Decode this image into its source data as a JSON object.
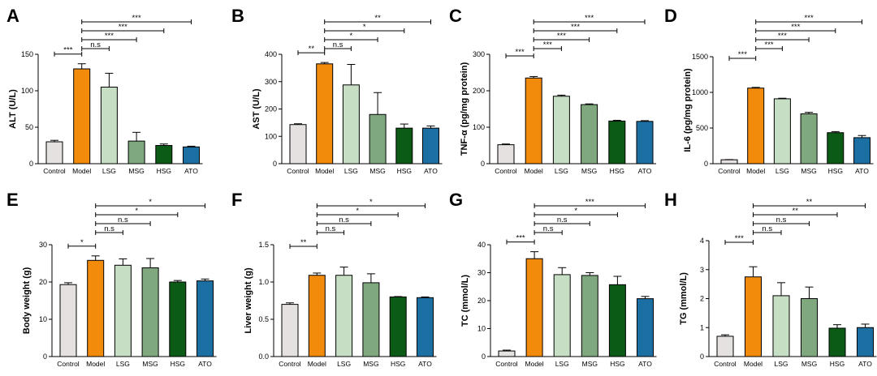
{
  "figure": {
    "colors": {
      "Control": "#e6e1e1",
      "Model": "#f28a0c",
      "LSG": "#c6dfc4",
      "MSG": "#7fa87f",
      "HSG": "#0b5a16",
      "ATO": "#1c6fa2"
    }
  },
  "chart_data": [
    {
      "panel": "A",
      "type": "bar",
      "ylabel": "ALT (U/L)",
      "categories": [
        "Control",
        "Model",
        "LSG",
        "MSG",
        "HSG",
        "ATO"
      ],
      "values": [
        30,
        130,
        105,
        31,
        25,
        23
      ],
      "errors": [
        2,
        7,
        19,
        12,
        2,
        1
      ],
      "ylim": [
        0,
        150
      ],
      "yticks": [
        0,
        50,
        100,
        150
      ],
      "comparisons": [
        {
          "from": 0,
          "to": 1,
          "label": "***"
        },
        {
          "from": 1,
          "to": 2,
          "label": "n.s"
        },
        {
          "from": 1,
          "to": 3,
          "label": "***"
        },
        {
          "from": 1,
          "to": 4,
          "label": "***"
        },
        {
          "from": 1,
          "to": 5,
          "label": "***"
        }
      ]
    },
    {
      "panel": "B",
      "type": "bar",
      "ylabel": "AST (U/L)",
      "categories": [
        "Control",
        "Model",
        "LSG",
        "MSG",
        "HSG",
        "ATO"
      ],
      "values": [
        143,
        365,
        288,
        180,
        130,
        130
      ],
      "errors": [
        3,
        5,
        75,
        80,
        15,
        8
      ],
      "ylim": [
        0,
        400
      ],
      "yticks": [
        0,
        100,
        200,
        300,
        400
      ],
      "comparisons": [
        {
          "from": 0,
          "to": 1,
          "label": "**"
        },
        {
          "from": 1,
          "to": 2,
          "label": "n.s"
        },
        {
          "from": 1,
          "to": 3,
          "label": "*"
        },
        {
          "from": 1,
          "to": 4,
          "label": "*"
        },
        {
          "from": 1,
          "to": 5,
          "label": "**"
        }
      ]
    },
    {
      "panel": "C",
      "type": "bar",
      "ylabel": "TNF-α (pg/mg protein)",
      "categories": [
        "Control",
        "Model",
        "LSG",
        "MSG",
        "HSG",
        "ATO"
      ],
      "values": [
        52,
        235,
        185,
        162,
        117,
        116
      ],
      "errors": [
        2,
        4,
        3,
        2,
        2,
        2
      ],
      "ylim": [
        0,
        300
      ],
      "yticks": [
        0,
        100,
        200,
        300
      ],
      "comparisons": [
        {
          "from": 0,
          "to": 1,
          "label": "***"
        },
        {
          "from": 1,
          "to": 2,
          "label": "***"
        },
        {
          "from": 1,
          "to": 3,
          "label": "***"
        },
        {
          "from": 1,
          "to": 4,
          "label": "***"
        },
        {
          "from": 1,
          "to": 5,
          "label": "***"
        }
      ]
    },
    {
      "panel": "D",
      "type": "bar",
      "ylabel": "IL-6 (pg/mg protein)",
      "categories": [
        "Control",
        "Model",
        "LSG",
        "MSG",
        "HSG",
        "ATO"
      ],
      "values": [
        55,
        1060,
        910,
        700,
        435,
        365
      ],
      "errors": [
        3,
        10,
        8,
        20,
        15,
        30
      ],
      "ylim": [
        0,
        1500
      ],
      "yticks": [
        0,
        500,
        1000,
        1500
      ],
      "comparisons": [
        {
          "from": 0,
          "to": 1,
          "label": "***"
        },
        {
          "from": 1,
          "to": 2,
          "label": "***"
        },
        {
          "from": 1,
          "to": 3,
          "label": "***"
        },
        {
          "from": 1,
          "to": 4,
          "label": "***"
        },
        {
          "from": 1,
          "to": 5,
          "label": "***"
        }
      ]
    },
    {
      "panel": "E",
      "type": "bar",
      "ylabel": "Body weight (g)",
      "categories": [
        "Control",
        "Model",
        "LSG",
        "MSG",
        "HSG",
        "ATO"
      ],
      "values": [
        19.3,
        25.8,
        24.5,
        23.8,
        20.0,
        20.3
      ],
      "errors": [
        0.5,
        1.2,
        1.7,
        2.5,
        0.4,
        0.5
      ],
      "ylim": [
        0,
        30
      ],
      "yticks": [
        0,
        10,
        20,
        30
      ],
      "comparisons": [
        {
          "from": 0,
          "to": 1,
          "label": "*"
        },
        {
          "from": 1,
          "to": 2,
          "label": "n.s"
        },
        {
          "from": 1,
          "to": 3,
          "label": "n.s"
        },
        {
          "from": 1,
          "to": 4,
          "label": "*"
        },
        {
          "from": 1,
          "to": 5,
          "label": "*"
        }
      ]
    },
    {
      "panel": "F",
      "type": "bar",
      "ylabel": "Liver weight (g)",
      "categories": [
        "Control",
        "Model",
        "LSG",
        "MSG",
        "HSG",
        "ATO"
      ],
      "values": [
        0.7,
        1.09,
        1.09,
        0.99,
        0.8,
        0.79
      ],
      "errors": [
        0.02,
        0.03,
        0.11,
        0.12,
        0.005,
        0.01
      ],
      "ylim": [
        0,
        1.5
      ],
      "yticks": [
        0.0,
        0.5,
        1.0,
        1.5
      ],
      "comparisons": [
        {
          "from": 0,
          "to": 1,
          "label": "**"
        },
        {
          "from": 1,
          "to": 2,
          "label": "n.s"
        },
        {
          "from": 1,
          "to": 3,
          "label": "n.s"
        },
        {
          "from": 1,
          "to": 4,
          "label": "*"
        },
        {
          "from": 1,
          "to": 5,
          "label": "*"
        }
      ]
    },
    {
      "panel": "G",
      "type": "bar",
      "ylabel": "TC (mmol/L)",
      "categories": [
        "Control",
        "Model",
        "LSG",
        "MSG",
        "HSG",
        "ATO"
      ],
      "values": [
        2,
        35,
        29.3,
        29.0,
        25.7,
        20.7
      ],
      "errors": [
        0.3,
        2.5,
        2.5,
        1.0,
        3.0,
        0.8
      ],
      "ylim": [
        0,
        40
      ],
      "yticks": [
        0,
        10,
        20,
        30,
        40
      ],
      "comparisons": [
        {
          "from": 0,
          "to": 1,
          "label": "***"
        },
        {
          "from": 1,
          "to": 2,
          "label": "n.s"
        },
        {
          "from": 1,
          "to": 3,
          "label": "n.s"
        },
        {
          "from": 1,
          "to": 4,
          "label": "*"
        },
        {
          "from": 1,
          "to": 5,
          "label": "***"
        }
      ]
    },
    {
      "panel": "H",
      "type": "bar",
      "ylabel": "TG (mmol/L)",
      "categories": [
        "Control",
        "Model",
        "LSG",
        "MSG",
        "HSG",
        "ATO"
      ],
      "values": [
        0.7,
        2.75,
        2.1,
        2.0,
        0.98,
        1.0
      ],
      "errors": [
        0.05,
        0.35,
        0.45,
        0.4,
        0.12,
        0.12
      ],
      "ylim": [
        0,
        4
      ],
      "yticks": [
        0,
        1,
        2,
        3,
        4
      ],
      "comparisons": [
        {
          "from": 0,
          "to": 1,
          "label": "***"
        },
        {
          "from": 1,
          "to": 2,
          "label": "n.s"
        },
        {
          "from": 1,
          "to": 3,
          "label": "n.s"
        },
        {
          "from": 1,
          "to": 4,
          "label": "**"
        },
        {
          "from": 1,
          "to": 5,
          "label": "**"
        }
      ]
    }
  ]
}
